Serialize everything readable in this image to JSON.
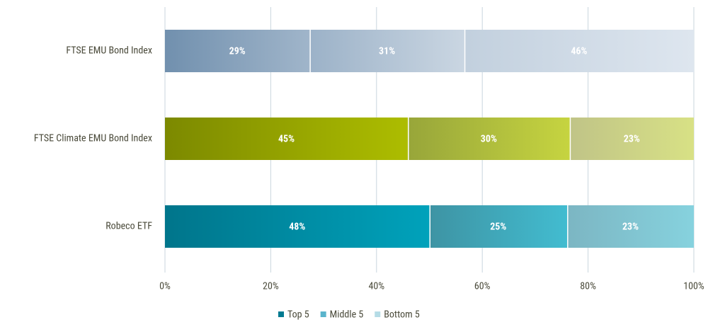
{
  "chart_data": {
    "type": "bar",
    "orientation": "horizontal",
    "stacked": "percent",
    "categories": [
      "FTSE EMU Bond Index",
      "FTSE Climate EMU Bond Index",
      "Robeco ETF"
    ],
    "series": [
      {
        "name": "Top 5",
        "color": "#007a91",
        "values": [
          29,
          45,
          48
        ],
        "value_labels": [
          "29%",
          "45%",
          "48%"
        ],
        "colors": [
          [
            "#7190ae",
            "#a0b5ca"
          ],
          [
            "#7c8900",
            "#adbd00"
          ],
          [
            "#00758b",
            "#00a2bb"
          ]
        ]
      },
      {
        "name": "Middle 5",
        "color": "#5ab4cc",
        "values": [
          31,
          30,
          25
        ],
        "value_labels": [
          "31%",
          "30%",
          "25%"
        ],
        "colors": [
          [
            "#9cb2c8",
            "#cad6e2"
          ],
          [
            "#98a63a",
            "#c6d440"
          ],
          [
            "#3e94a4",
            "#42bcd0"
          ]
        ]
      },
      {
        "name": "Bottom 5",
        "color": "#b5dce6",
        "values": [
          46,
          23,
          23
        ],
        "value_labels": [
          "46%",
          "23%",
          "23%"
        ],
        "colors": [
          [
            "#c2d0de",
            "#dee6ef"
          ],
          [
            "#c0c487",
            "#d8e185"
          ],
          [
            "#7cb6c3",
            "#86d2de"
          ]
        ]
      }
    ],
    "xlim": [
      0,
      100
    ],
    "xticks": [
      {
        "value": 0,
        "label": "0%"
      },
      {
        "value": 20,
        "label": "20%"
      },
      {
        "value": 40,
        "label": "40%"
      },
      {
        "value": 60,
        "label": "60%"
      },
      {
        "value": 80,
        "label": "80%"
      },
      {
        "value": 100,
        "label": "100%"
      }
    ],
    "grid": true,
    "legend": "bottom"
  }
}
